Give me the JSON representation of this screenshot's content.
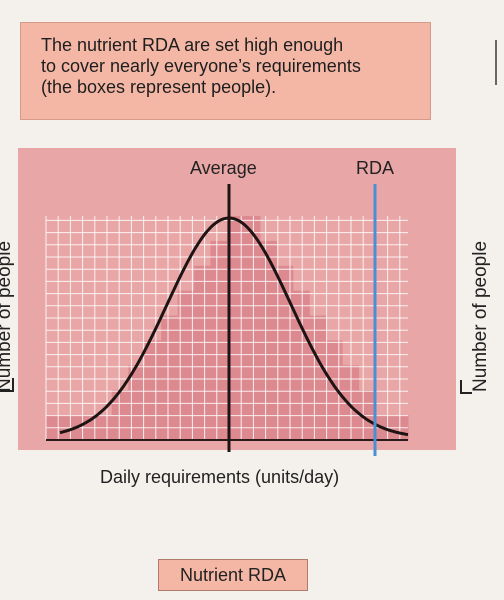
{
  "callout": {
    "lines": [
      "The nutrient RDA are set high enough",
      "to cover nearly everyone’s requirements",
      "(the boxes represent people)."
    ]
  },
  "diagram": {
    "average_label": "Average",
    "rda_label": "RDA",
    "y_axis_label": "Number of people",
    "x_axis_label": "Daily requirements (units/day)",
    "right_y_axis_label": "Number of people",
    "colors": {
      "panel": "#e9a6a6",
      "cells": "#dc8a90",
      "grid": "#ffffff",
      "curve": "#1f1414",
      "average_line": "#1f1414",
      "rda_line": "#4a8fd6"
    },
    "histogram_column_heights": [
      1,
      1,
      1,
      1,
      2,
      3,
      4,
      5,
      6,
      7,
      8,
      9,
      9,
      8,
      7,
      6,
      5,
      4,
      3,
      2,
      1,
      1
    ]
  },
  "button": {
    "label": "Nutrient RDA"
  }
}
